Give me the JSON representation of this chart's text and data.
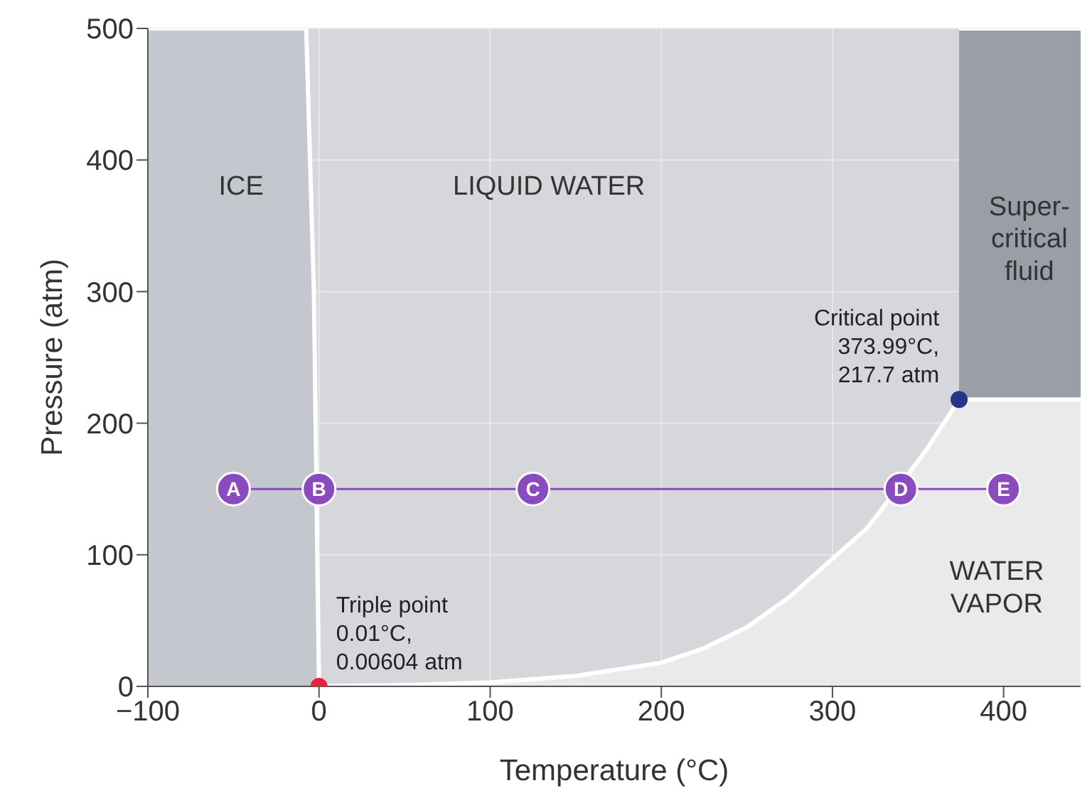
{
  "chart_data": {
    "type": "area",
    "xlabel": "Temperature (°C)",
    "ylabel": "Pressure (atm)",
    "xlim": [
      -100,
      445
    ],
    "ylim": [
      0,
      500
    ],
    "xticks": [
      {
        "value": -100,
        "label": "−100"
      },
      0,
      100,
      200,
      300,
      400
    ],
    "yticks": [
      0,
      100,
      200,
      300,
      400,
      500
    ],
    "grid": true,
    "legend": false,
    "series": [
      {
        "color": "#9a9ea6",
        "x": [
          374,
          445
        ],
        "values": [
          500,
          500
        ]
      },
      {
        "color": "#e9eaec",
        "x": [
          0,
          50,
          100,
          150,
          200,
          225,
          250,
          275,
          300,
          320,
          338,
          356,
          374,
          445
        ],
        "values": [
          0,
          1,
          3,
          8,
          18,
          29,
          45,
          68,
          97,
          120,
          150,
          182,
          218,
          218
        ]
      },
      {
        "color": "#c4c7cd",
        "x": [
          -100,
          -7.5,
          -3,
          -1,
          0
        ],
        "values": [
          500,
          500,
          300,
          100,
          0
        ]
      },
      {
        "type": "line",
        "color": "#8a4bbf",
        "marker": "circle",
        "x": [
          -50,
          0,
          125,
          340,
          400
        ],
        "values": [
          150,
          150,
          150,
          150,
          150
        ],
        "value_labels": [
          "A",
          "B",
          "C",
          "D",
          "E"
        ]
      },
      {
        "type": "scatter",
        "color": "#e8213f",
        "x": [
          0
        ],
        "values": [
          0
        ]
      },
      {
        "type": "scatter",
        "color": "#27348b",
        "x": [
          374
        ],
        "values": [
          218
        ]
      }
    ],
    "annotations": [
      "ICE",
      "LIQUID WATER",
      "Super-\ncritical\nfluid",
      "WATER\nVAPOR",
      {
        "text": "Triple point\n0.01°C,\n0.00604 atm",
        "x": 0,
        "y": 0
      },
      {
        "text": "Critical point\n373.99°C,\n217.7 atm",
        "x": 374,
        "y": 218
      }
    ]
  }
}
